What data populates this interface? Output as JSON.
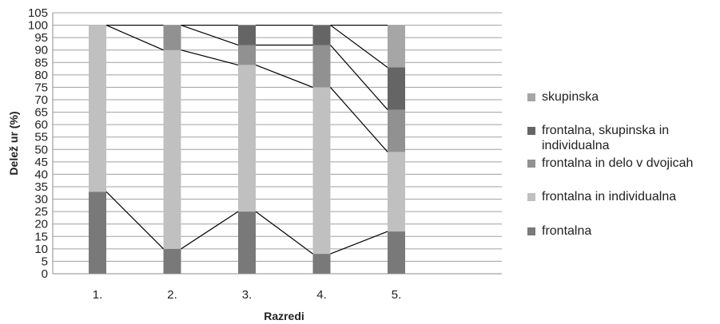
{
  "chart_data": {
    "type": "bar",
    "stacked": true,
    "xlabel": "Razredi",
    "ylabel": "Delež ur (%)",
    "categories": [
      "1.",
      "2.",
      "3.",
      "4.",
      "5."
    ],
    "ylim": [
      0,
      105
    ],
    "ytick_step": 5,
    "grid": true,
    "legend_position": "right",
    "series": [
      {
        "name": "frontalna",
        "color": "#797979",
        "values": [
          33,
          10,
          25,
          8,
          17
        ]
      },
      {
        "name": "frontalna in individualna",
        "color": "#c0c0c0",
        "values": [
          67,
          80,
          59,
          67,
          32
        ]
      },
      {
        "name": "frontalna in delo v dvojicah",
        "color": "#919191",
        "values": [
          0,
          10,
          8,
          17,
          17
        ]
      },
      {
        "name": "frontalna, skupinska in individualna",
        "color": "#656565",
        "values": [
          0,
          0,
          8,
          8,
          17
        ]
      },
      {
        "name": "skupinska",
        "color": "#a6a6a6",
        "values": [
          0,
          0,
          0,
          0,
          17
        ]
      }
    ]
  }
}
